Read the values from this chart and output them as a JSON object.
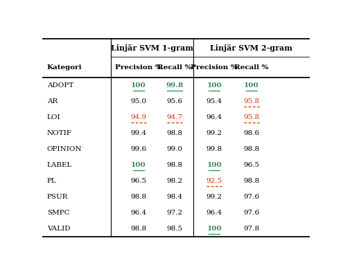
{
  "col_header_1": "Linjär SVM 1-gram",
  "col_header_2": "Linjär SVM 2-gram",
  "sub_headers": [
    "Precision %",
    "Recall %",
    "Precision %",
    "Recall %"
  ],
  "categories": [
    "ADOPT",
    "AR",
    "LOI",
    "NOTIF",
    "OPINION",
    "LABEL",
    "PL",
    "PSUR",
    "SMPC",
    "VALID"
  ],
  "svm1_precision": [
    "100",
    "95.0",
    "94.9",
    "99.4",
    "99.6",
    "100",
    "96.5",
    "98.8",
    "96.4",
    "98.8"
  ],
  "svm1_recall": [
    "99.8",
    "95.6",
    "94.7",
    "98.8",
    "99.0",
    "98.8",
    "98.2",
    "98.4",
    "97.2",
    "98.5"
  ],
  "svm2_precision": [
    "100",
    "95.4",
    "96.4",
    "99.2",
    "99.8",
    "100",
    "92.5",
    "99.2",
    "96.4",
    "100"
  ],
  "svm2_recall": [
    "100",
    "95.8",
    "95.8",
    "98.6",
    "98.8",
    "96.5",
    "98.8",
    "97.6",
    "97.6",
    "97.8"
  ],
  "svm1_precision_color": [
    "green",
    "black",
    "red",
    "black",
    "black",
    "green",
    "black",
    "black",
    "black",
    "black"
  ],
  "svm1_recall_color": [
    "green",
    "black",
    "red",
    "black",
    "black",
    "black",
    "black",
    "black",
    "black",
    "black"
  ],
  "svm2_precision_color": [
    "green",
    "black",
    "black",
    "black",
    "black",
    "green",
    "red",
    "black",
    "black",
    "green"
  ],
  "svm2_recall_color": [
    "green",
    "red",
    "red",
    "black",
    "black",
    "black",
    "black",
    "black",
    "black",
    "black"
  ],
  "svm1_precision_underline": [
    true,
    false,
    false,
    false,
    false,
    true,
    false,
    false,
    false,
    false
  ],
  "svm1_recall_underline": [
    true,
    false,
    false,
    false,
    false,
    false,
    false,
    false,
    false,
    false
  ],
  "svm2_precision_underline": [
    true,
    false,
    false,
    false,
    false,
    true,
    false,
    false,
    false,
    true
  ],
  "svm2_recall_underline": [
    true,
    false,
    false,
    false,
    false,
    false,
    false,
    false,
    false,
    false
  ],
  "svm1_precision_dashed": [
    false,
    false,
    true,
    false,
    false,
    false,
    false,
    false,
    false,
    false
  ],
  "svm1_recall_dashed": [
    false,
    false,
    true,
    false,
    false,
    false,
    false,
    false,
    false,
    false
  ],
  "svm2_precision_dashed": [
    false,
    false,
    false,
    false,
    false,
    false,
    true,
    false,
    false,
    false
  ],
  "svm2_recall_dashed": [
    false,
    true,
    true,
    false,
    false,
    false,
    false,
    false,
    false,
    false
  ],
  "svm1_precision_bold": [
    true,
    false,
    false,
    false,
    false,
    true,
    false,
    false,
    false,
    false
  ],
  "svm1_recall_bold": [
    true,
    false,
    false,
    false,
    false,
    false,
    false,
    false,
    false,
    false
  ],
  "svm2_precision_bold": [
    true,
    false,
    false,
    false,
    false,
    true,
    false,
    false,
    false,
    true
  ],
  "svm2_recall_bold": [
    true,
    false,
    false,
    false,
    false,
    false,
    false,
    false,
    false,
    false
  ],
  "bg_color": "#ffffff",
  "text_color_normal": "#000000",
  "text_color_green": "#2e8b57",
  "text_color_red": "#cc3300"
}
